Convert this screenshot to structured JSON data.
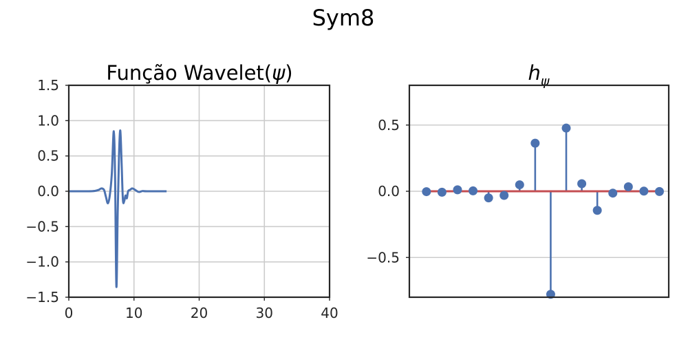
{
  "figure": {
    "title": "Sym8"
  },
  "chart_data": [
    {
      "type": "line",
      "title_text": "Função Wavelet(",
      "title_symbol": "ψ",
      "title_close": ")",
      "xlabel": "",
      "ylabel": "",
      "xlim": [
        0,
        40
      ],
      "ylim": [
        -1.5,
        1.5
      ],
      "xticks": [
        0,
        10,
        20,
        30,
        40
      ],
      "xtick_labels": [
        "0",
        "10",
        "20",
        "30",
        "40"
      ],
      "yticks": [
        1.5,
        1.0,
        0.5,
        0.0,
        -0.5,
        -1.0,
        -1.5
      ],
      "ytick_labels": [
        "1.5",
        "1.0",
        "0.5",
        "0.0",
        "−0.5",
        "−1.0",
        "−1.5"
      ],
      "grid": true,
      "color": "#4c72b0",
      "series": [
        {
          "x": [
            0,
            3.0,
            4.0,
            4.6,
            5.0,
            5.4,
            5.7,
            6.0,
            6.3,
            6.6,
            6.9,
            7.1,
            7.3,
            7.5,
            7.7,
            7.9,
            8.1,
            8.3,
            8.5,
            8.7,
            8.9,
            9.1,
            9.4,
            9.7,
            10.0,
            10.4,
            10.8,
            11.3,
            12.0,
            15.0
          ],
          "y": [
            0,
            0,
            0.005,
            0.02,
            0.04,
            0.02,
            -0.08,
            -0.17,
            -0.05,
            0.25,
            0.85,
            0.2,
            -1.35,
            -0.3,
            0.5,
            0.86,
            0.4,
            -0.12,
            -0.14,
            -0.06,
            -0.1,
            0.0,
            0.02,
            0.04,
            0.03,
            0.005,
            -0.01,
            0.003,
            0,
            0
          ]
        }
      ]
    },
    {
      "type": "stem",
      "title_base": "h",
      "title_sub": "ψ",
      "xlabel": "",
      "ylabel": "",
      "xlim": [
        -1.1,
        15.6
      ],
      "ylim": [
        -0.8,
        0.8
      ],
      "xticks": [],
      "yticks": [
        0.5,
        0.0,
        -0.5
      ],
      "ytick_labels": [
        "0.5",
        "0.0",
        "−0.5"
      ],
      "grid": true,
      "marker_color": "#4c72b0",
      "baseline_color": "#c44e52",
      "series": [
        {
          "x": [
            0,
            1,
            2,
            3,
            4,
            5,
            6,
            7,
            8,
            9,
            10,
            11,
            12,
            13,
            14,
            15
          ],
          "values": [
            -0.003,
            -0.007,
            0.011,
            0.003,
            -0.05,
            -0.031,
            0.049,
            0.363,
            -0.778,
            0.477,
            0.057,
            -0.144,
            -0.014,
            0.034,
            0.001,
            -0.002
          ]
        }
      ]
    }
  ]
}
